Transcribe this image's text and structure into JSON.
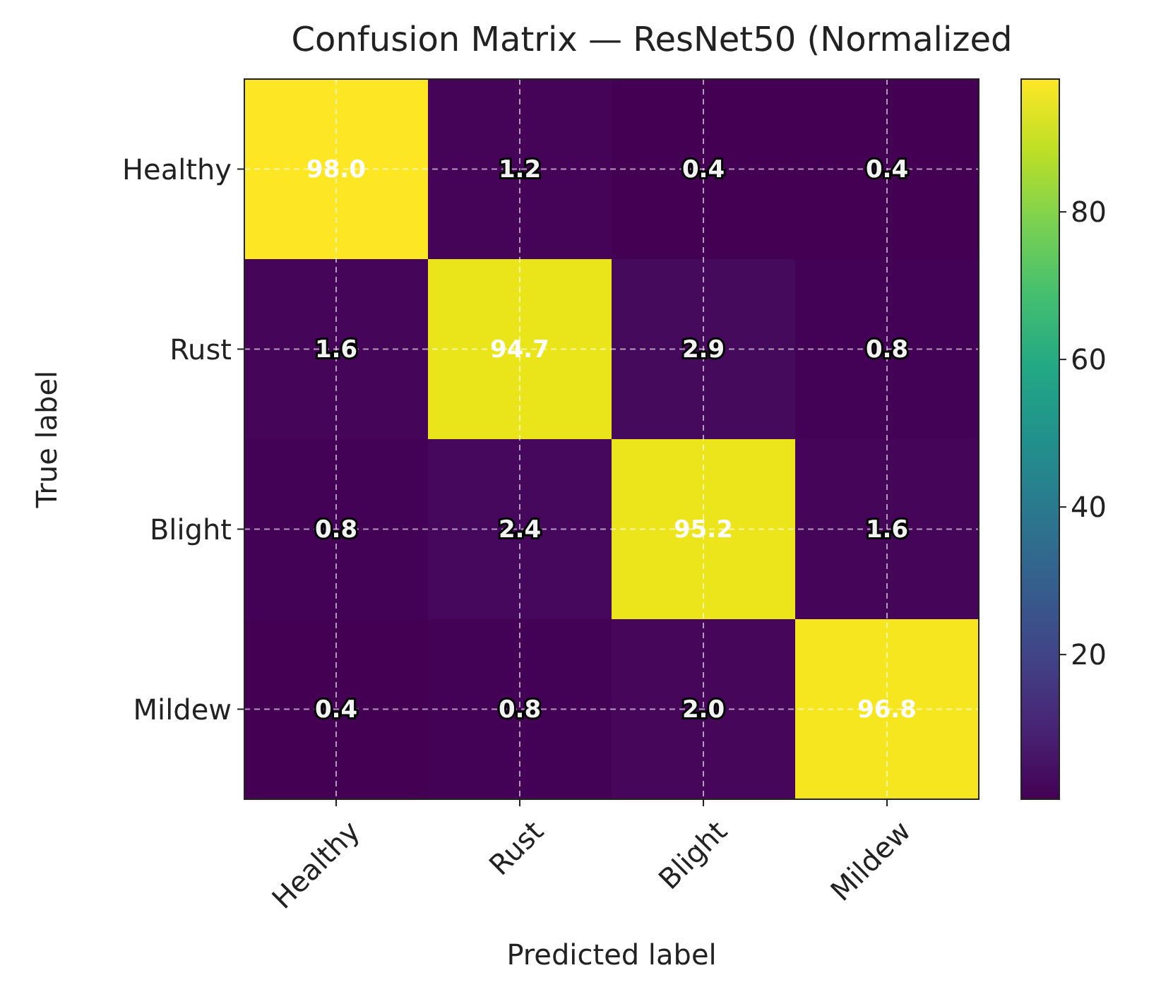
{
  "chart_data": {
    "type": "heatmap",
    "title": "Confusion Matrix — ResNet50 (Normalized",
    "xlabel": "Predicted label",
    "ylabel": "True label",
    "categories": [
      "Healthy",
      "Rust",
      "Blight",
      "Mildew"
    ],
    "y_categories": [
      "Healthy",
      "Rust",
      "Blight",
      "Mildew"
    ],
    "cells": [
      [
        98.0,
        1.2,
        0.4,
        0.4
      ],
      [
        1.6,
        94.7,
        2.9,
        0.8
      ],
      [
        0.8,
        2.4,
        95.2,
        1.6
      ],
      [
        0.4,
        0.8,
        2.0,
        96.8
      ]
    ],
    "cell_labels": [
      [
        "98.0",
        "1.2",
        "0.4",
        "0.4"
      ],
      [
        "1.6",
        "94.7",
        "2.9",
        "0.8"
      ],
      [
        "0.8",
        "2.4",
        "95.2",
        "1.6"
      ],
      [
        "0.4",
        "0.8",
        "2.0",
        "96.8"
      ]
    ],
    "clim": [
      0.4,
      98.0
    ],
    "cticks": [
      20,
      40,
      60,
      80
    ],
    "grid": true
  }
}
